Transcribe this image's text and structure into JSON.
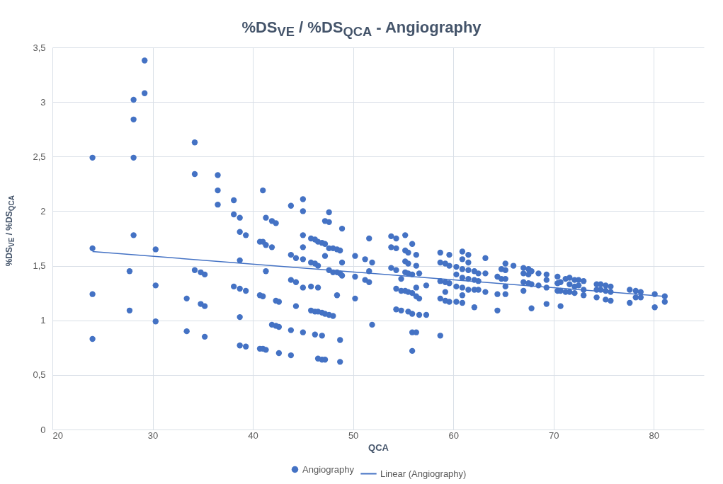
{
  "chart_data": {
    "type": "scatter",
    "title": "%DS$_{VE}$ / %DS$_{QCA}$  - Angiography",
    "xlabel": "QCA",
    "ylabel": "%DS$_{VE}$ / %DS$_{QCA}$",
    "xlim": [
      20,
      85
    ],
    "xticks": [
      20,
      30,
      40,
      50,
      60,
      70,
      80
    ],
    "ylim": [
      0,
      3.5
    ],
    "yticks": [
      0,
      {
        "value": 0.5,
        "label": "0,5"
      },
      1,
      {
        "value": 1.5,
        "label": "1,5"
      },
      2,
      {
        "value": 2.5,
        "label": "2,5"
      },
      3,
      {
        "value": 3.5,
        "label": "3,5"
      }
    ],
    "grid": true,
    "legend": "bottom",
    "marker": "circle",
    "series": [
      {
        "name": "Angiography",
        "color": "#4472c4",
        "x": [
          24,
          24,
          24,
          24,
          27.7,
          27.7,
          28.1,
          28.1,
          28.1,
          28.1,
          29.2,
          29.2,
          30.3,
          30.3,
          30.3,
          33.4,
          33.4,
          34.2,
          34.2,
          34.2,
          34.8,
          34.8,
          35.2,
          35.2,
          35.2,
          36.5,
          36.5,
          36.5,
          38.1,
          38.1,
          38.1,
          38.7,
          38.7,
          38.7,
          38.7,
          38.7,
          38.7,
          39.3,
          39.3,
          39.3,
          40.7,
          40.7,
          40.7,
          41,
          41,
          41,
          41,
          41.3,
          41.3,
          41.3,
          41.3,
          41.9,
          41.9,
          41.9,
          42.3,
          42.3,
          42.3,
          42.6,
          42.6,
          42.6,
          43.8,
          43.8,
          43.8,
          43.8,
          43.8,
          44.3,
          44.3,
          44.3,
          45,
          45,
          45,
          45,
          45,
          45,
          45,
          45.8,
          45.8,
          45.8,
          45.8,
          46.2,
          46.2,
          46.2,
          46.2,
          46.5,
          46.5,
          46.5,
          46.5,
          46.5,
          46.9,
          46.9,
          46.9,
          46.9,
          47.2,
          47.2,
          47.2,
          47.2,
          47.2,
          47.6,
          47.6,
          47.6,
          47.6,
          47.6,
          48,
          48,
          48,
          48.4,
          48.4,
          48.4,
          48.7,
          48.7,
          48.7,
          48.7,
          48.9,
          48.9,
          48.9,
          50.2,
          50.2,
          50.2,
          51.2,
          51.2,
          51.6,
          51.6,
          51.6,
          51.9,
          51.9,
          53.8,
          53.8,
          53.8,
          54.3,
          54.3,
          54.3,
          54.3,
          54.3,
          54.8,
          54.8,
          54.8,
          55.2,
          55.2,
          55.2,
          55.2,
          55.2,
          55.5,
          55.5,
          55.5,
          55.5,
          55.5,
          55.9,
          55.9,
          55.9,
          55.9,
          55.9,
          55.9,
          56.3,
          56.3,
          56.3,
          56.3,
          56.3,
          56.6,
          56.6,
          56.6,
          57.3,
          57.3,
          58.7,
          58.7,
          58.7,
          58.7,
          58.7,
          59.2,
          59.2,
          59.2,
          59.2,
          59.6,
          59.6,
          59.6,
          59.6,
          60.3,
          60.3,
          60.3,
          60.3,
          60.9,
          60.9,
          60.9,
          60.9,
          60.9,
          60.9,
          60.9,
          61.5,
          61.5,
          61.5,
          61.5,
          61.5,
          62.1,
          62.1,
          62.1,
          62.1,
          62.5,
          62.5,
          62.5,
          63.2,
          63.2,
          63.2,
          64.4,
          64.4,
          64.4,
          64.8,
          64.8,
          65.2,
          65.2,
          65.2,
          65.2,
          65.2,
          66,
          67,
          67,
          67,
          67,
          67.5,
          67.5,
          67.5,
          67.8,
          67.8,
          67.8,
          68.5,
          68.5,
          69.3,
          69.3,
          69.3,
          69.3,
          70.4,
          70.4,
          70.4,
          70.7,
          70.7,
          70.7,
          71.2,
          71.2,
          71.6,
          71.6,
          71.6,
          72.1,
          72.1,
          72.1,
          72.5,
          72.5,
          73,
          73,
          73,
          74.3,
          74.3,
          74.3,
          74.7,
          74.7,
          75.2,
          75.2,
          75.2,
          75.7,
          75.7,
          75.7,
          77.6,
          77.6,
          78.2,
          78.2,
          78.7,
          78.7,
          80.1,
          80.1,
          81.1,
          81.1
        ],
        "values": [
          2.49,
          1.66,
          1.24,
          0.83,
          1.45,
          1.09,
          3.02,
          2.84,
          2.49,
          1.78,
          3.38,
          3.08,
          1.65,
          1.32,
          0.99,
          1.2,
          0.9,
          2.63,
          2.34,
          1.46,
          1.44,
          1.15,
          1.42,
          1.13,
          0.85,
          2.33,
          2.19,
          2.06,
          2.1,
          1.97,
          1.31,
          1.94,
          1.81,
          1.55,
          1.29,
          1.03,
          0.77,
          1.78,
          1.27,
          0.76,
          1.72,
          1.23,
          0.74,
          2.19,
          1.72,
          1.22,
          0.74,
          1.94,
          1.69,
          1.45,
          0.73,
          1.91,
          1.67,
          0.96,
          1.89,
          1.18,
          0.95,
          1.17,
          0.94,
          0.7,
          2.05,
          1.6,
          1.37,
          0.91,
          0.68,
          1.57,
          1.35,
          1.13,
          2.11,
          2,
          1.78,
          1.67,
          1.56,
          1.3,
          0.89,
          1.75,
          1.53,
          1.31,
          1.09,
          1.74,
          1.52,
          1.08,
          0.87,
          1.72,
          1.5,
          1.3,
          1.08,
          0.65,
          1.71,
          1.07,
          0.86,
          0.64,
          1.91,
          1.7,
          1.59,
          1.06,
          0.64,
          1.99,
          1.9,
          1.66,
          1.46,
          1.05,
          1.66,
          1.44,
          1.04,
          1.65,
          1.44,
          1.23,
          1.64,
          1.43,
          0.82,
          0.62,
          1.84,
          1.53,
          1.41,
          1.59,
          1.4,
          1.2,
          1.56,
          1.37,
          1.75,
          1.45,
          1.35,
          1.53,
          0.96,
          1.77,
          1.67,
          1.48,
          1.75,
          1.66,
          1.46,
          1.29,
          1.1,
          1.38,
          1.27,
          1.09,
          1.78,
          1.64,
          1.54,
          1.44,
          1.27,
          1.62,
          1.52,
          1.43,
          1.26,
          1.08,
          1.7,
          1.42,
          1.25,
          1.06,
          0.89,
          0.72,
          1.6,
          1.5,
          1.3,
          1.22,
          0.89,
          1.43,
          1.2,
          1.05,
          1.32,
          1.05,
          1.62,
          1.53,
          1.36,
          1.2,
          0.86,
          1.52,
          1.35,
          1.26,
          1.18,
          1.6,
          1.5,
          1.34,
          1.17,
          1.49,
          1.42,
          1.31,
          1.17,
          1.63,
          1.56,
          1.47,
          1.39,
          1.3,
          1.23,
          1.16,
          1.6,
          1.53,
          1.46,
          1.38,
          1.28,
          1.45,
          1.37,
          1.28,
          1.12,
          1.43,
          1.36,
          1.28,
          1.57,
          1.43,
          1.26,
          1.4,
          1.24,
          1.09,
          1.47,
          1.38,
          1.52,
          1.46,
          1.38,
          1.31,
          1.24,
          1.5,
          1.48,
          1.43,
          1.35,
          1.27,
          1.47,
          1.42,
          1.34,
          1.45,
          1.33,
          1.11,
          1.43,
          1.32,
          1.42,
          1.37,
          1.3,
          1.15,
          1.4,
          1.34,
          1.27,
          1.35,
          1.27,
          1.13,
          1.38,
          1.26,
          1.39,
          1.33,
          1.26,
          1.37,
          1.31,
          1.25,
          1.37,
          1.32,
          1.36,
          1.28,
          1.23,
          1.33,
          1.28,
          1.21,
          1.33,
          1.28,
          1.32,
          1.27,
          1.19,
          1.31,
          1.26,
          1.18,
          1.28,
          1.16,
          1.27,
          1.21,
          1.26,
          1.21,
          1.24,
          1.12,
          1.22,
          1.17
        ]
      },
      {
        "name": "Linear (Angiography)",
        "color": "#4472c4",
        "type": "line",
        "marker": "none",
        "x": [
          24,
          81
        ],
        "values": [
          1.63,
          1.22
        ]
      }
    ]
  }
}
